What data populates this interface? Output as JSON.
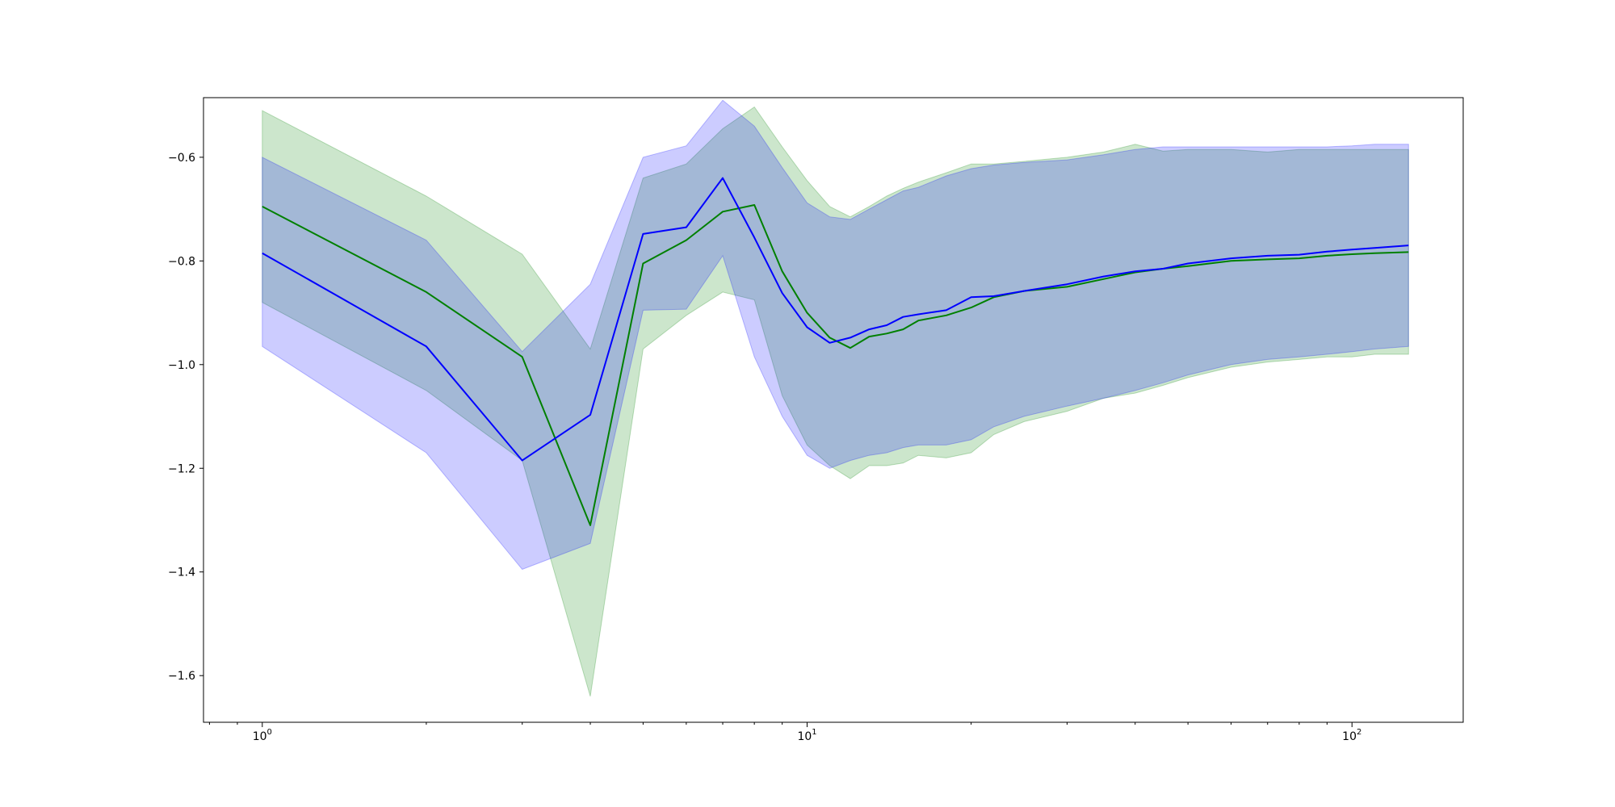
{
  "chart_data": {
    "type": "line",
    "x_scale": "log",
    "title": "",
    "xlabel": "",
    "ylabel": "",
    "xlim": [
      0.78,
      160
    ],
    "ylim": [
      -1.69,
      -0.485
    ],
    "grid": false,
    "y_ticks": [
      {
        "value": -0.6,
        "label": "−0.6"
      },
      {
        "value": -0.8,
        "label": "−0.8"
      },
      {
        "value": -1.0,
        "label": "−1.0"
      },
      {
        "value": -1.2,
        "label": "−1.2"
      },
      {
        "value": -1.4,
        "label": "−1.4"
      },
      {
        "value": -1.6,
        "label": "−1.6"
      }
    ],
    "x_ticks": [
      {
        "value": 1,
        "base": "10",
        "exp": "0"
      },
      {
        "value": 10,
        "base": "10",
        "exp": "1"
      },
      {
        "value": 100,
        "base": "10",
        "exp": "2"
      }
    ],
    "series": [
      {
        "color": "#008000",
        "band_color": "#008000",
        "band_opacity": 0.2,
        "x": [
          1,
          2,
          3,
          4,
          5,
          6,
          7,
          8,
          9,
          10,
          11,
          12,
          13,
          14,
          15,
          16,
          18,
          20,
          22,
          25,
          30,
          35,
          40,
          45,
          50,
          60,
          70,
          80,
          90,
          100,
          110,
          127
        ],
        "y": [
          -0.695,
          -0.86,
          -0.985,
          -1.31,
          -0.805,
          -0.76,
          -0.705,
          -0.692,
          -0.82,
          -0.9,
          -0.948,
          -0.968,
          -0.946,
          -0.94,
          -0.932,
          -0.915,
          -0.905,
          -0.89,
          -0.87,
          -0.858,
          -0.85,
          -0.835,
          -0.822,
          -0.815,
          -0.81,
          -0.8,
          -0.797,
          -0.795,
          -0.79,
          -0.787,
          -0.785,
          -0.783
        ],
        "upper": [
          -0.51,
          -0.675,
          -0.787,
          -0.97,
          -0.64,
          -0.613,
          -0.545,
          -0.503,
          -0.58,
          -0.645,
          -0.695,
          -0.715,
          -0.695,
          -0.675,
          -0.66,
          -0.648,
          -0.63,
          -0.613,
          -0.613,
          -0.608,
          -0.6,
          -0.59,
          -0.575,
          -0.588,
          -0.585,
          -0.585,
          -0.59,
          -0.585,
          -0.585,
          -0.585,
          -0.585,
          -0.585
        ],
        "lower": [
          -0.88,
          -1.05,
          -1.185,
          -1.64,
          -0.97,
          -0.905,
          -0.86,
          -0.875,
          -1.06,
          -1.155,
          -1.195,
          -1.22,
          -1.195,
          -1.195,
          -1.19,
          -1.175,
          -1.18,
          -1.17,
          -1.135,
          -1.11,
          -1.09,
          -1.065,
          -1.055,
          -1.04,
          -1.025,
          -1.005,
          -0.995,
          -0.99,
          -0.985,
          -0.985,
          -0.98,
          -0.98
        ]
      },
      {
        "color": "#0000ff",
        "band_color": "#0000ff",
        "band_opacity": 0.2,
        "x": [
          1,
          2,
          3,
          4,
          5,
          6,
          7,
          8,
          9,
          10,
          11,
          12,
          13,
          14,
          15,
          16,
          18,
          20,
          22,
          25,
          30,
          35,
          40,
          45,
          50,
          60,
          70,
          80,
          90,
          100,
          110,
          127
        ],
        "y": [
          -0.785,
          -0.965,
          -1.185,
          -1.097,
          -0.748,
          -0.735,
          -0.64,
          -0.755,
          -0.862,
          -0.928,
          -0.958,
          -0.948,
          -0.932,
          -0.924,
          -0.908,
          -0.903,
          -0.895,
          -0.87,
          -0.868,
          -0.858,
          -0.845,
          -0.83,
          -0.82,
          -0.815,
          -0.805,
          -0.795,
          -0.79,
          -0.788,
          -0.782,
          -0.778,
          -0.775,
          -0.77
        ],
        "upper": [
          -0.6,
          -0.76,
          -0.975,
          -0.845,
          -0.6,
          -0.578,
          -0.49,
          -0.54,
          -0.62,
          -0.688,
          -0.715,
          -0.72,
          -0.7,
          -0.682,
          -0.665,
          -0.658,
          -0.636,
          -0.622,
          -0.615,
          -0.61,
          -0.605,
          -0.595,
          -0.585,
          -0.58,
          -0.58,
          -0.58,
          -0.58,
          -0.58,
          -0.58,
          -0.578,
          -0.575,
          -0.575
        ],
        "lower": [
          -0.965,
          -1.17,
          -1.395,
          -1.345,
          -0.895,
          -0.893,
          -0.79,
          -0.985,
          -1.1,
          -1.175,
          -1.2,
          -1.185,
          -1.175,
          -1.17,
          -1.16,
          -1.155,
          -1.155,
          -1.145,
          -1.12,
          -1.1,
          -1.08,
          -1.065,
          -1.05,
          -1.035,
          -1.02,
          -1.0,
          -0.99,
          -0.985,
          -0.98,
          -0.975,
          -0.97,
          -0.965
        ]
      }
    ]
  }
}
